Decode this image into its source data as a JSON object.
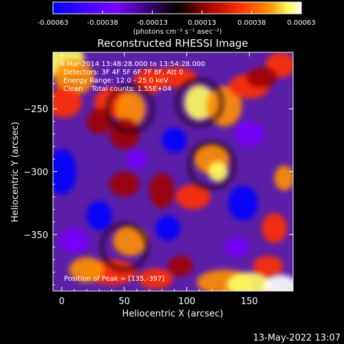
{
  "chart_data": {
    "type": "heatmap",
    "title": "Reconstructed RHESSI Image",
    "xlabel": "Heliocentric X (arcsec)",
    "ylabel": "Heliocentric Y (arcsec)",
    "xlim": [
      -7,
      185
    ],
    "ylim": [
      -395,
      -205
    ],
    "xticks": [
      0,
      50,
      100,
      150
    ],
    "yticks": [
      -250,
      -300,
      -350
    ],
    "colorbar": {
      "min": -0.00063,
      "max": 0.00063,
      "ticks": [
        "-0.00063",
        "-0.00038",
        "-0.00013",
        "0.00013",
        "0.00038",
        "0.00063"
      ],
      "unit_label": "(photons cm⁻² s⁻¹ asec⁻²)",
      "colormap": [
        "#0000ff",
        "#7a00ff",
        "#000000",
        "#a00000",
        "#ff3000",
        "#ff9000",
        "#ffff60",
        "#ffffff"
      ]
    },
    "annotations": [
      "4-Mar-2014 13:48:28.000 to 13:54:28.000",
      "Detectors: 3F 4F 5F 6F 7F 8F, Att 0",
      "Energy Range: 12.0 - 25.0 keV",
      "Clean    Total counts: 1.55E+04"
    ],
    "peak_label": "Position of Peak = [135,-397]",
    "grid": false
  },
  "footer": {
    "date": "13-May-2022 13:07"
  }
}
